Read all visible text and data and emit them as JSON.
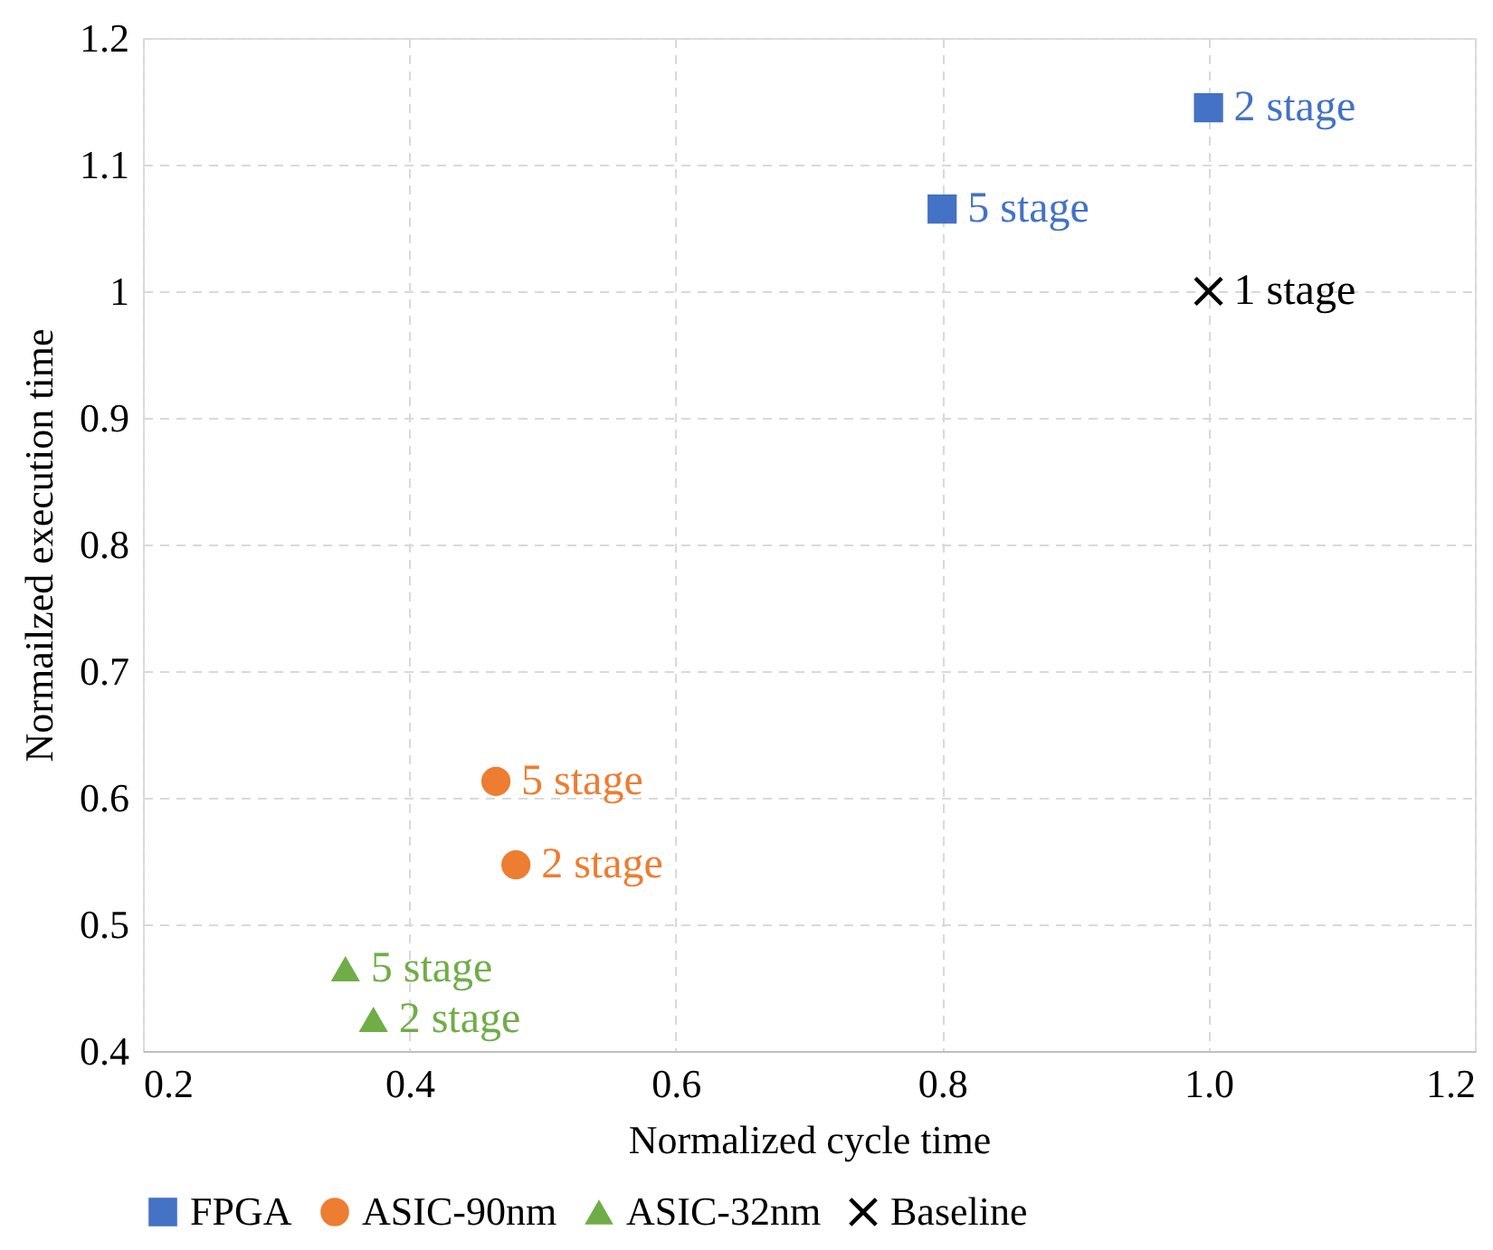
{
  "chart_data": {
    "type": "scatter",
    "xlabel": "Normalized cycle time",
    "ylabel": "Normailzed execution time",
    "xlim": [
      0.2,
      1.2
    ],
    "xticks": [
      0.2,
      0.4,
      0.6,
      0.8,
      {
        "value": 1.0,
        "label": "1.0"
      },
      1.2
    ],
    "ylim": [
      0.4,
      1.2
    ],
    "yticks": [
      0.4,
      0.5,
      0.6,
      0.7,
      0.8,
      0.9,
      1,
      1.1,
      1.2
    ],
    "grid": true,
    "legend": "bottom",
    "series": [
      {
        "name": "FPGA",
        "color": "#4472c4",
        "marker": "square",
        "x": [
          1.0,
          0.8
        ],
        "values": [
          1.145,
          1.065
        ]
      },
      {
        "name": "ASIC-90nm",
        "color": "#ed7d31",
        "marker": "circle",
        "x": [
          0.465,
          0.48
        ],
        "values": [
          0.613,
          0.547
        ]
      },
      {
        "name": "ASIC-32nm",
        "color": "#70ad47",
        "marker": "triangle",
        "x": [
          0.352,
          0.373
        ],
        "values": [
          0.465,
          0.425
        ]
      },
      {
        "name": "Baseline",
        "color": "#000000",
        "marker": "cross",
        "x": [
          1.0
        ],
        "values": [
          1.0
        ]
      }
    ],
    "annotations": [
      {
        "text": "2 stage",
        "x": 1.0,
        "y": 1.145
      },
      {
        "text": "5 stage",
        "x": 0.8,
        "y": 1.065
      },
      {
        "text": "5 stage",
        "x": 0.465,
        "y": 0.613
      },
      {
        "text": "2 stage",
        "x": 0.48,
        "y": 0.547
      },
      {
        "text": "5 stage",
        "x": 0.352,
        "y": 0.465
      },
      {
        "text": "2 stage",
        "x": 0.373,
        "y": 0.425
      },
      {
        "text": "1 stage",
        "x": 1.0,
        "y": 1.0
      }
    ]
  }
}
